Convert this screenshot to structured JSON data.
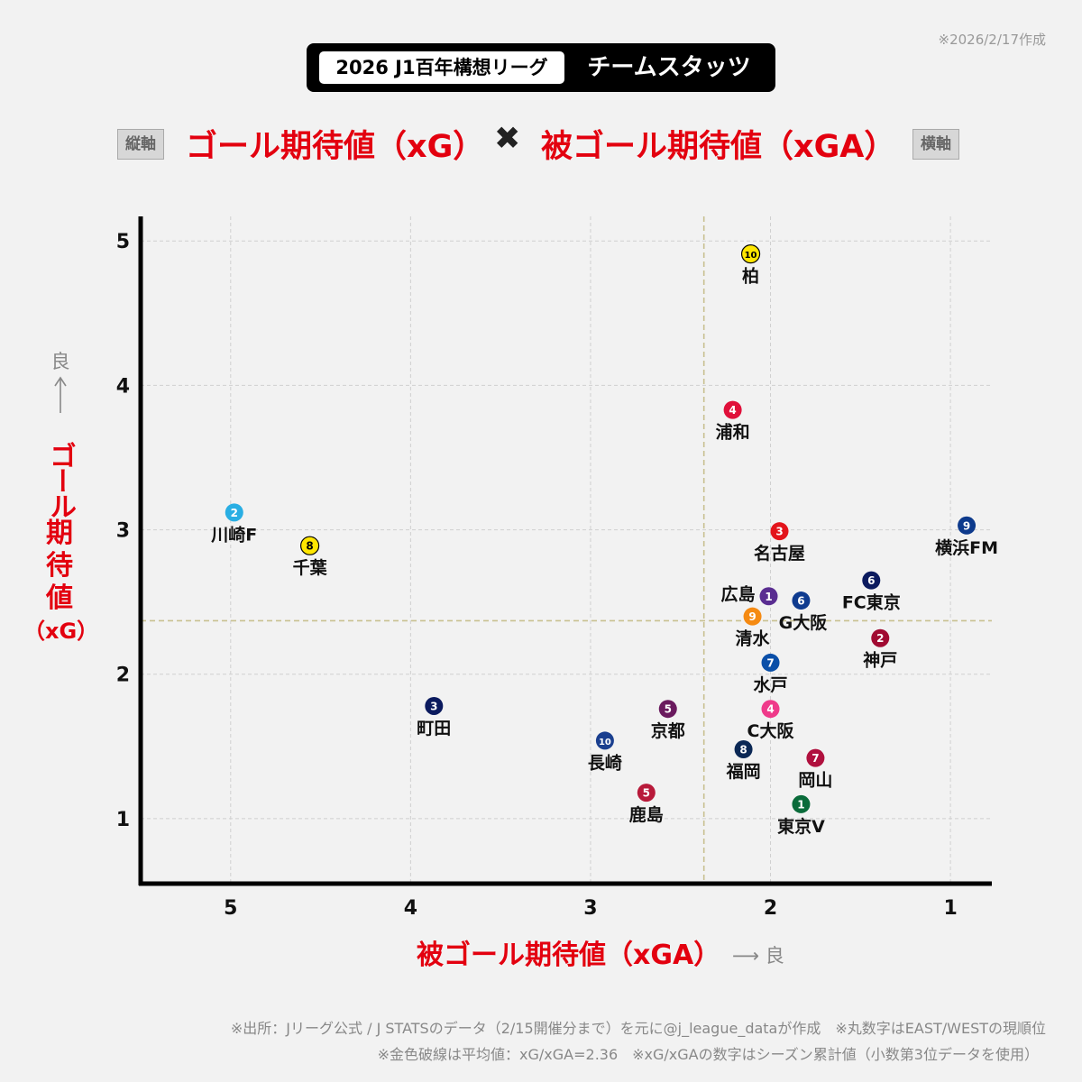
{
  "date_note": "※2026/2/17作成",
  "title": {
    "left": "2026 J1百年構想リーグ",
    "right": "チームスタッツ"
  },
  "subtitle": {
    "y_tag": "縦軸",
    "y_metric": "ゴール期待値（xG）",
    "times": "✖",
    "x_metric": "被ゴール期待値（xGA）",
    "x_tag": "横軸"
  },
  "y_axis": {
    "good_label": "良",
    "label_line1": "ゴール",
    "label_line2": "期",
    "label_line3": "待",
    "label_line4": "値",
    "label_line5": "（xG）"
  },
  "x_axis": {
    "label": "被ゴール期待値（xGA）",
    "good_label": "良"
  },
  "footnotes": {
    "line1": "※出所：Jリーグ公式 / J STATSのデータ（2/15開催分まで）を元に@j_league_dataが作成　※丸数字はEAST/WESTの現順位",
    "line2": "※金色破線は平均値：xG/xGA=2.36　※xG/xGAの数字はシーズン累計値（小数第3位データを使用）"
  },
  "chart_data": {
    "type": "scatter",
    "xlabel": "被ゴール期待値（xGA）",
    "ylabel": "ゴール期待値（xG）",
    "xlim": [
      5.5,
      0.77
    ],
    "ylim": [
      0.55,
      5.17
    ],
    "x_reversed": true,
    "x_ticks": [
      5,
      4,
      3,
      2,
      1
    ],
    "y_ticks": [
      1,
      2,
      3,
      4,
      5
    ],
    "grid": true,
    "average_lines": {
      "x": 2.37,
      "y": 2.37,
      "color": "#c8c090"
    },
    "points": [
      {
        "team": "柏",
        "rank": "10",
        "x": 2.11,
        "y": 4.91,
        "color": "#ffe600",
        "text_color": "#000"
      },
      {
        "team": "浦和",
        "rank": "4",
        "x": 2.21,
        "y": 3.83,
        "color": "#e0103a",
        "text_color": "#fff"
      },
      {
        "team": "川崎F",
        "rank": "2",
        "x": 4.98,
        "y": 3.12,
        "color": "#29aee3",
        "text_color": "#fff"
      },
      {
        "team": "千葉",
        "rank": "8",
        "x": 4.56,
        "y": 2.89,
        "color": "#ffe600",
        "text_color": "#000"
      },
      {
        "team": "横浜FM",
        "rank": "9",
        "x": 0.91,
        "y": 3.03,
        "color": "#0d3a8c",
        "text_color": "#fff"
      },
      {
        "team": "名古屋",
        "rank": "3",
        "x": 1.95,
        "y": 2.99,
        "color": "#e3141b",
        "text_color": "#fff"
      },
      {
        "team": "FC東京",
        "rank": "6",
        "x": 1.44,
        "y": 2.65,
        "color": "#0b1a5e",
        "text_color": "#fff"
      },
      {
        "team": "広島",
        "rank": "1",
        "x": 2.01,
        "y": 2.54,
        "color": "#5a2d91",
        "text_color": "#fff"
      },
      {
        "team": "G大阪",
        "rank": "6",
        "x": 1.83,
        "y": 2.51,
        "color": "#0f3b8f",
        "text_color": "#fff"
      },
      {
        "team": "清水",
        "rank": "9",
        "x": 2.1,
        "y": 2.4,
        "color": "#f58a12",
        "text_color": "#fff"
      },
      {
        "team": "神戸",
        "rank": "2",
        "x": 1.39,
        "y": 2.25,
        "color": "#a10b32",
        "text_color": "#fff"
      },
      {
        "team": "水戸",
        "rank": "7",
        "x": 2.0,
        "y": 2.08,
        "color": "#0a4fa8",
        "text_color": "#fff"
      },
      {
        "team": "町田",
        "rank": "3",
        "x": 3.87,
        "y": 1.78,
        "color": "#0b1a5e",
        "text_color": "#fff"
      },
      {
        "team": "京都",
        "rank": "5",
        "x": 2.57,
        "y": 1.76,
        "color": "#6a1a5e",
        "text_color": "#fff"
      },
      {
        "team": "C大阪",
        "rank": "4",
        "x": 2.0,
        "y": 1.76,
        "color": "#ef3a8a",
        "text_color": "#fff"
      },
      {
        "team": "長崎",
        "rank": "10",
        "x": 2.92,
        "y": 1.54,
        "color": "#1a3f8f",
        "text_color": "#fff"
      },
      {
        "team": "福岡",
        "rank": "8",
        "x": 2.15,
        "y": 1.48,
        "color": "#0b2855",
        "text_color": "#fff"
      },
      {
        "team": "岡山",
        "rank": "7",
        "x": 1.75,
        "y": 1.42,
        "color": "#b0103e",
        "text_color": "#fff"
      },
      {
        "team": "鹿島",
        "rank": "5",
        "x": 2.69,
        "y": 1.18,
        "color": "#b81a3a",
        "text_color": "#fff"
      },
      {
        "team": "東京V",
        "rank": "1",
        "x": 1.83,
        "y": 1.1,
        "color": "#0a6b3a",
        "text_color": "#fff"
      }
    ]
  }
}
